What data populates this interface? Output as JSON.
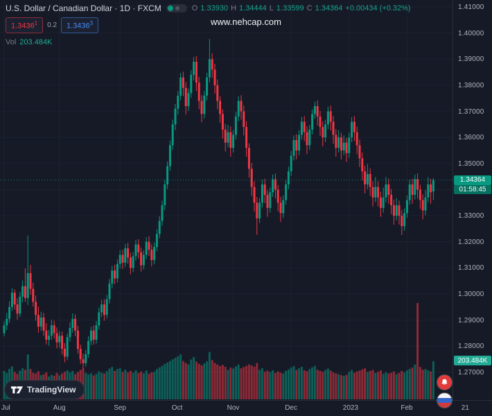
{
  "header": {
    "title": "U.S. Dollar / Canadian Dollar · 1D · FXCM",
    "ohlc": {
      "o_label": "O",
      "open": "1.33930",
      "h_label": "H",
      "high": "1.34444",
      "l_label": "L",
      "low": "1.33599",
      "c_label": "C",
      "close": "1.34364"
    },
    "change": "+0.00434 (+0.32%)"
  },
  "order": {
    "sell": "1.3436",
    "sell_sup": "1",
    "spread": "0.2",
    "buy": "1.3436",
    "buy_sup": "3"
  },
  "volume_row": {
    "label": "Vol",
    "value": "203.484K"
  },
  "watermark": "www.nehcap.com",
  "badges": {
    "price": "1.34364",
    "countdown": "01:58:45",
    "volume": "203.484K"
  },
  "logo": {
    "text": "TradingView"
  },
  "icons": {
    "logo_mark": "tradingview-mark",
    "red_floating": "notification-bell",
    "blue_floating": "tricolor-flag",
    "toggle": "market-status-toggle"
  },
  "colors": {
    "bg": "#151a26",
    "grid": "#1d2230",
    "axis_text": "#b2b5be",
    "muted": "#787b86",
    "up": "#089981",
    "down": "#f23645",
    "vol_up": "rgba(8,153,129,0.55)",
    "vol_down": "rgba(242,54,69,0.55)",
    "legend_up": "#17a38b",
    "sell": "#f23645",
    "buy": "#4a8af4",
    "price_badge": "#089981",
    "countdown_badge": "#07705f",
    "vol_badge": "#22ab94",
    "red_button": "#e23b3b"
  },
  "price_scale": [
    "1.41000",
    "1.40000",
    "1.39000",
    "1.38000",
    "1.37000",
    "1.36000",
    "1.35000",
    "1.34000",
    "1.33000",
    "1.32000",
    "1.31000",
    "1.30000",
    "1.29000",
    "1.28000",
    "1.27000"
  ],
  "chart_data": {
    "type": "candlestick",
    "symbol": "USD/CAD",
    "interval": "1D",
    "exchange": "FXCM",
    "ylim": [
      1.27,
      1.41
    ],
    "legend_position": "top-left",
    "grid": true,
    "month_ticks": [
      {
        "label": "Jul",
        "i": 0
      },
      {
        "label": "Aug",
        "i": 21
      },
      {
        "label": "Sep",
        "i": 44
      },
      {
        "label": "Oct",
        "i": 66
      },
      {
        "label": "Nov",
        "i": 87
      },
      {
        "label": "Dec",
        "i": 109
      },
      {
        "label": "2023",
        "i": 131
      },
      {
        "label": "Feb",
        "i": 153
      },
      {
        "label": "21",
        "i": 176
      }
    ],
    "last_price": 1.34364,
    "last_volume_k": 203.484,
    "candles": [
      [
        1.285,
        1.2896,
        1.2838,
        1.288,
        152
      ],
      [
        1.288,
        1.2928,
        1.2862,
        1.2905,
        141
      ],
      [
        1.2905,
        1.2972,
        1.289,
        1.295,
        163
      ],
      [
        1.295,
        1.3022,
        1.2935,
        1.3005,
        176
      ],
      [
        1.3005,
        1.3018,
        1.294,
        1.296,
        147
      ],
      [
        1.296,
        1.2984,
        1.2902,
        1.2925,
        136
      ],
      [
        1.2925,
        1.3008,
        1.2912,
        1.299,
        154
      ],
      [
        1.299,
        1.3052,
        1.2968,
        1.303,
        166
      ],
      [
        1.303,
        1.3098,
        1.297,
        1.2985,
        158
      ],
      [
        1.2985,
        1.3224,
        1.2958,
        1.308,
        240
      ],
      [
        1.308,
        1.3112,
        1.2998,
        1.302,
        162
      ],
      [
        1.302,
        1.3044,
        1.2952,
        1.297,
        142
      ],
      [
        1.297,
        1.2994,
        1.2898,
        1.292,
        138
      ],
      [
        1.292,
        1.2952,
        1.2852,
        1.2875,
        150
      ],
      [
        1.2875,
        1.2932,
        1.2858,
        1.291,
        130
      ],
      [
        1.291,
        1.2928,
        1.284,
        1.286,
        134
      ],
      [
        1.286,
        1.2888,
        1.2806,
        1.2825,
        144
      ],
      [
        1.2825,
        1.2862,
        1.2802,
        1.284,
        122
      ],
      [
        1.284,
        1.2902,
        1.2824,
        1.288,
        131
      ],
      [
        1.288,
        1.2898,
        1.283,
        1.285,
        126
      ],
      [
        1.285,
        1.2872,
        1.2792,
        1.2815,
        141
      ],
      [
        1.2815,
        1.2858,
        1.2794,
        1.284,
        128
      ],
      [
        1.284,
        1.2856,
        1.2768,
        1.279,
        138
      ],
      [
        1.279,
        1.2812,
        1.2738,
        1.276,
        147
      ],
      [
        1.276,
        1.2848,
        1.2746,
        1.2835,
        155
      ],
      [
        1.2835,
        1.2892,
        1.2818,
        1.287,
        144
      ],
      [
        1.287,
        1.2926,
        1.2852,
        1.2905,
        152
      ],
      [
        1.2905,
        1.2922,
        1.2838,
        1.286,
        134
      ],
      [
        1.286,
        1.2878,
        1.2772,
        1.279,
        146
      ],
      [
        1.279,
        1.2806,
        1.2732,
        1.275,
        157
      ],
      [
        1.275,
        1.2772,
        1.2717,
        1.2735,
        168
      ],
      [
        1.2735,
        1.2786,
        1.2722,
        1.277,
        141
      ],
      [
        1.277,
        1.2838,
        1.2756,
        1.282,
        133
      ],
      [
        1.282,
        1.2874,
        1.2804,
        1.286,
        139
      ],
      [
        1.286,
        1.288,
        1.2806,
        1.2825,
        128
      ],
      [
        1.2825,
        1.2896,
        1.281,
        1.288,
        136
      ],
      [
        1.288,
        1.2948,
        1.2864,
        1.293,
        149
      ],
      [
        1.293,
        1.2978,
        1.2912,
        1.296,
        142
      ],
      [
        1.296,
        1.298,
        1.2898,
        1.292,
        138
      ],
      [
        1.292,
        1.2996,
        1.2906,
        1.298,
        150
      ],
      [
        1.298,
        1.3058,
        1.2964,
        1.304,
        165
      ],
      [
        1.304,
        1.3108,
        1.3022,
        1.309,
        173
      ],
      [
        1.309,
        1.3112,
        1.3038,
        1.306,
        152
      ],
      [
        1.306,
        1.3132,
        1.3044,
        1.3115,
        162
      ],
      [
        1.3115,
        1.3168,
        1.3098,
        1.315,
        166
      ],
      [
        1.315,
        1.317,
        1.3096,
        1.312,
        147
      ],
      [
        1.312,
        1.3192,
        1.3104,
        1.3175,
        158
      ],
      [
        1.3175,
        1.3196,
        1.3116,
        1.314,
        144
      ],
      [
        1.314,
        1.3158,
        1.3076,
        1.31,
        152
      ],
      [
        1.31,
        1.3162,
        1.3084,
        1.3145,
        142
      ],
      [
        1.3145,
        1.3208,
        1.3128,
        1.319,
        155
      ],
      [
        1.319,
        1.321,
        1.3136,
        1.316,
        141
      ],
      [
        1.316,
        1.3178,
        1.3086,
        1.311,
        149
      ],
      [
        1.311,
        1.3168,
        1.3094,
        1.315,
        139
      ],
      [
        1.315,
        1.3218,
        1.3134,
        1.32,
        154
      ],
      [
        1.32,
        1.3222,
        1.3146,
        1.317,
        136
      ],
      [
        1.317,
        1.319,
        1.3106,
        1.313,
        144
      ],
      [
        1.313,
        1.3198,
        1.3114,
        1.318,
        147
      ],
      [
        1.318,
        1.3248,
        1.3164,
        1.323,
        162
      ],
      [
        1.323,
        1.3298,
        1.3214,
        1.328,
        171
      ],
      [
        1.328,
        1.3358,
        1.3262,
        1.334,
        179
      ],
      [
        1.334,
        1.3438,
        1.3322,
        1.342,
        189
      ],
      [
        1.342,
        1.3508,
        1.3402,
        1.349,
        197
      ],
      [
        1.349,
        1.3588,
        1.3472,
        1.357,
        205
      ],
      [
        1.357,
        1.3668,
        1.3552,
        1.365,
        214
      ],
      [
        1.365,
        1.3728,
        1.3628,
        1.371,
        222
      ],
      [
        1.371,
        1.3778,
        1.3688,
        1.376,
        230
      ],
      [
        1.376,
        1.3848,
        1.3742,
        1.383,
        240
      ],
      [
        1.383,
        1.3852,
        1.3758,
        1.379,
        205
      ],
      [
        1.379,
        1.3812,
        1.3688,
        1.372,
        194
      ],
      [
        1.372,
        1.3788,
        1.3702,
        1.377,
        187
      ],
      [
        1.377,
        1.3858,
        1.3752,
        1.384,
        213
      ],
      [
        1.384,
        1.3908,
        1.3818,
        1.389,
        226
      ],
      [
        1.389,
        1.3912,
        1.3778,
        1.381,
        202
      ],
      [
        1.381,
        1.3832,
        1.3708,
        1.374,
        190
      ],
      [
        1.374,
        1.3762,
        1.3658,
        1.369,
        182
      ],
      [
        1.369,
        1.3778,
        1.3672,
        1.376,
        192
      ],
      [
        1.376,
        1.3848,
        1.3742,
        1.383,
        203
      ],
      [
        1.383,
        1.3977,
        1.3812,
        1.39,
        253
      ],
      [
        1.39,
        1.3922,
        1.3828,
        1.386,
        210
      ],
      [
        1.386,
        1.3882,
        1.3768,
        1.38,
        195
      ],
      [
        1.38,
        1.3822,
        1.3708,
        1.374,
        186
      ],
      [
        1.374,
        1.3758,
        1.3656,
        1.369,
        178
      ],
      [
        1.369,
        1.3708,
        1.3596,
        1.363,
        184
      ],
      [
        1.363,
        1.3652,
        1.3546,
        1.358,
        174
      ],
      [
        1.358,
        1.3648,
        1.3562,
        1.362,
        157
      ],
      [
        1.362,
        1.3642,
        1.3526,
        1.356,
        170
      ],
      [
        1.356,
        1.3628,
        1.3542,
        1.361,
        165
      ],
      [
        1.361,
        1.3698,
        1.3592,
        1.368,
        176
      ],
      [
        1.368,
        1.3758,
        1.3662,
        1.374,
        186
      ],
      [
        1.374,
        1.3762,
        1.3668,
        1.37,
        166
      ],
      [
        1.37,
        1.3722,
        1.3608,
        1.364,
        173
      ],
      [
        1.364,
        1.3662,
        1.3526,
        1.356,
        179
      ],
      [
        1.356,
        1.3578,
        1.3446,
        1.348,
        187
      ],
      [
        1.348,
        1.3502,
        1.3376,
        1.341,
        181
      ],
      [
        1.341,
        1.3432,
        1.3316,
        1.335,
        174
      ],
      [
        1.335,
        1.3372,
        1.3227,
        1.329,
        194
      ],
      [
        1.329,
        1.3368,
        1.3272,
        1.335,
        158
      ],
      [
        1.335,
        1.3438,
        1.3332,
        1.342,
        166
      ],
      [
        1.342,
        1.3442,
        1.3348,
        1.338,
        147
      ],
      [
        1.338,
        1.3398,
        1.3296,
        1.333,
        154
      ],
      [
        1.333,
        1.3408,
        1.3312,
        1.339,
        146
      ],
      [
        1.339,
        1.3458,
        1.3372,
        1.344,
        155
      ],
      [
        1.344,
        1.3462,
        1.3366,
        1.34,
        141
      ],
      [
        1.34,
        1.3418,
        1.3316,
        1.335,
        149
      ],
      [
        1.335,
        1.3372,
        1.3276,
        1.331,
        142
      ],
      [
        1.331,
        1.3378,
        1.3292,
        1.336,
        138
      ],
      [
        1.336,
        1.3438,
        1.3342,
        1.342,
        152
      ],
      [
        1.342,
        1.3488,
        1.3402,
        1.347,
        160
      ],
      [
        1.347,
        1.3548,
        1.3452,
        1.353,
        170
      ],
      [
        1.353,
        1.3608,
        1.3512,
        1.359,
        178
      ],
      [
        1.359,
        1.3612,
        1.3516,
        1.355,
        157
      ],
      [
        1.355,
        1.3628,
        1.3532,
        1.361,
        166
      ],
      [
        1.361,
        1.3678,
        1.3592,
        1.366,
        174
      ],
      [
        1.366,
        1.3682,
        1.3586,
        1.362,
        155
      ],
      [
        1.362,
        1.3642,
        1.3536,
        1.357,
        150
      ],
      [
        1.357,
        1.3648,
        1.3552,
        1.363,
        162
      ],
      [
        1.363,
        1.3708,
        1.3612,
        1.369,
        171
      ],
      [
        1.369,
        1.3738,
        1.3672,
        1.372,
        179
      ],
      [
        1.372,
        1.3742,
        1.3646,
        1.368,
        158
      ],
      [
        1.368,
        1.3702,
        1.3606,
        1.364,
        152
      ],
      [
        1.364,
        1.3662,
        1.3566,
        1.36,
        147
      ],
      [
        1.36,
        1.3668,
        1.3582,
        1.365,
        157
      ],
      [
        1.365,
        1.3718,
        1.3632,
        1.37,
        165
      ],
      [
        1.37,
        1.3722,
        1.3626,
        1.366,
        154
      ],
      [
        1.366,
        1.3682,
        1.3576,
        1.361,
        144
      ],
      [
        1.361,
        1.3632,
        1.3526,
        1.356,
        139
      ],
      [
        1.356,
        1.3628,
        1.3542,
        1.36,
        134
      ],
      [
        1.36,
        1.3618,
        1.3516,
        1.355,
        130
      ],
      [
        1.355,
        1.3608,
        1.3532,
        1.358,
        125
      ],
      [
        1.358,
        1.3598,
        1.3506,
        1.354,
        131
      ],
      [
        1.354,
        1.3618,
        1.3522,
        1.36,
        147
      ],
      [
        1.36,
        1.3678,
        1.3582,
        1.366,
        157
      ],
      [
        1.366,
        1.3682,
        1.3586,
        1.362,
        142
      ],
      [
        1.362,
        1.3642,
        1.3536,
        1.357,
        149
      ],
      [
        1.357,
        1.3592,
        1.3486,
        1.352,
        154
      ],
      [
        1.352,
        1.3542,
        1.3436,
        1.347,
        160
      ],
      [
        1.347,
        1.3492,
        1.3386,
        1.342,
        166
      ],
      [
        1.342,
        1.3498,
        1.3402,
        1.346,
        146
      ],
      [
        1.346,
        1.3482,
        1.3376,
        1.341,
        152
      ],
      [
        1.341,
        1.3432,
        1.3336,
        1.337,
        157
      ],
      [
        1.337,
        1.3448,
        1.3352,
        1.341,
        141
      ],
      [
        1.341,
        1.3432,
        1.3336,
        1.337,
        147
      ],
      [
        1.337,
        1.3392,
        1.3296,
        1.333,
        154
      ],
      [
        1.333,
        1.3408,
        1.3312,
        1.337,
        136
      ],
      [
        1.337,
        1.3448,
        1.3352,
        1.342,
        144
      ],
      [
        1.342,
        1.3442,
        1.3346,
        1.338,
        138
      ],
      [
        1.338,
        1.3402,
        1.3306,
        1.334,
        142
      ],
      [
        1.334,
        1.3362,
        1.3266,
        1.33,
        149
      ],
      [
        1.33,
        1.3368,
        1.3282,
        1.334,
        134
      ],
      [
        1.334,
        1.3358,
        1.3266,
        1.33,
        141
      ],
      [
        1.33,
        1.3322,
        1.3226,
        1.326,
        152
      ],
      [
        1.326,
        1.3328,
        1.3242,
        1.331,
        144
      ],
      [
        1.331,
        1.3378,
        1.3292,
        1.336,
        155
      ],
      [
        1.336,
        1.3438,
        1.3342,
        1.342,
        163
      ],
      [
        1.342,
        1.3442,
        1.3346,
        1.338,
        170
      ],
      [
        1.338,
        1.3458,
        1.3362,
        1.344,
        186
      ],
      [
        1.344,
        1.3462,
        1.3366,
        1.34,
        515
      ],
      [
        1.34,
        1.3418,
        1.3326,
        1.336,
        173
      ],
      [
        1.336,
        1.3382,
        1.3286,
        1.332,
        158
      ],
      [
        1.332,
        1.3398,
        1.3302,
        1.337,
        162
      ],
      [
        1.337,
        1.3448,
        1.3352,
        1.342,
        155
      ],
      [
        1.342,
        1.3441,
        1.3346,
        1.339,
        149
      ],
      [
        1.3393,
        1.34444,
        1.33599,
        1.34364,
        203.484
      ]
    ]
  }
}
